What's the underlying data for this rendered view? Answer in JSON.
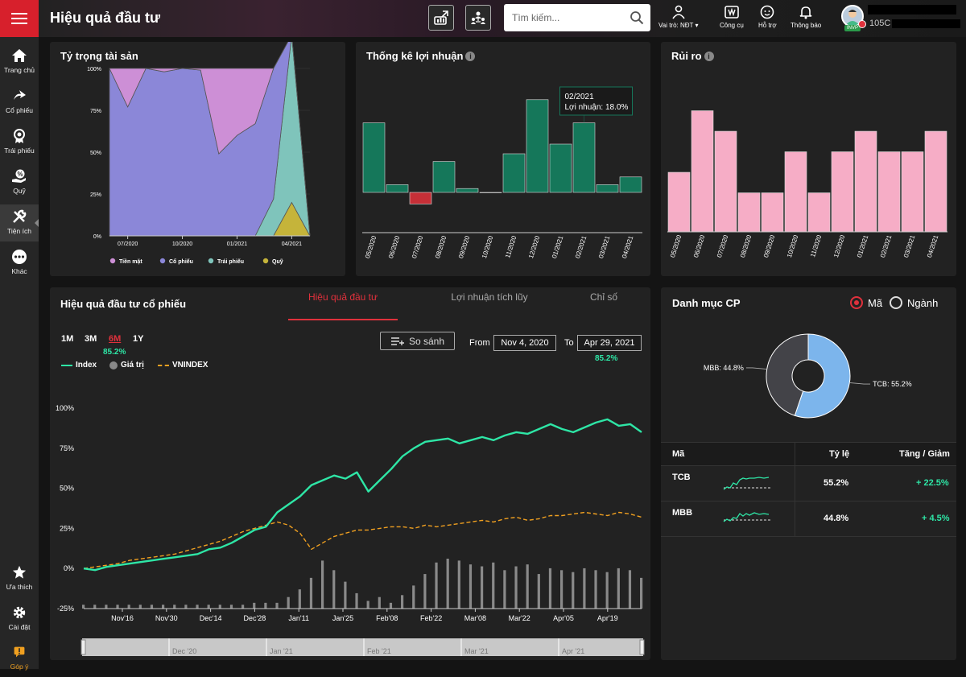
{
  "header": {
    "title": "Hiệu quả đầu tư",
    "search_placeholder": "Tìm kiếm...",
    "tools": [
      {
        "label": "Vai trò: NĐT",
        "icon": "user-icon"
      },
      {
        "label": "Công cụ",
        "icon": "toolbox-icon"
      },
      {
        "label": "Hỗ trợ",
        "icon": "support-icon"
      },
      {
        "label": "Thông báo",
        "icon": "bell-icon"
      }
    ],
    "account_code": "105C",
    "avatar_badge": "INVP"
  },
  "sidebar": {
    "items": [
      {
        "label": "Trang chủ",
        "icon": "home-icon"
      },
      {
        "label": "Cổ phiếu",
        "icon": "stock-icon"
      },
      {
        "label": "Trái phiếu",
        "icon": "bond-icon"
      },
      {
        "label": "Quỹ",
        "icon": "fund-icon"
      },
      {
        "label": "Tiện ích",
        "icon": "tools-icon"
      },
      {
        "label": "Khác",
        "icon": "more-icon"
      }
    ],
    "bottom": [
      {
        "label": "Ưa thích",
        "icon": "star-icon"
      },
      {
        "label": "Cài đặt",
        "icon": "gear-icon"
      },
      {
        "label": "Góp ý",
        "icon": "feedback-icon"
      }
    ]
  },
  "allocation": {
    "title": "Tỷ trọng tài sản",
    "chart_data": {
      "type": "area",
      "x": [
        "2020-06",
        "2020-07",
        "2020-08",
        "2020-09",
        "2020-10",
        "2020-11",
        "2020-12",
        "2021-01",
        "2021-02",
        "2021-03",
        "2021-04",
        "2021-05"
      ],
      "x_tick_labels": [
        "07/2020",
        "10/2020",
        "01/2021",
        "04/2021"
      ],
      "y_tick_labels": [
        "100%",
        "75%",
        "50%",
        "25%",
        "0%"
      ],
      "ylim": [
        0,
        100
      ],
      "series": [
        {
          "name": "Tiền mặt",
          "color": "#cd8fd6",
          "values": [
            0,
            23,
            0,
            2,
            0,
            1,
            51,
            40,
            33,
            0,
            0,
            0
          ]
        },
        {
          "name": "Cổ phiếu",
          "color": "#8b87d8",
          "values": [
            100,
            77,
            100,
            98,
            100,
            99,
            49,
            60,
            67,
            78,
            0,
            0
          ]
        },
        {
          "name": "Trái phiếu",
          "color": "#7fc4bb",
          "values": [
            0,
            0,
            0,
            0,
            0,
            0,
            0,
            0,
            0,
            22,
            100,
            0
          ]
        },
        {
          "name": "Quỹ",
          "color": "#c5b43a",
          "values": [
            0,
            0,
            0,
            0,
            0,
            0,
            0,
            0,
            0,
            0,
            20,
            0
          ]
        }
      ],
      "legend_position": "bottom"
    }
  },
  "profit": {
    "title": "Thống kê lợi nhuận",
    "tooltip": {
      "title": "02/2021",
      "text": "Lợi nhuận: 18.0%"
    },
    "chart_data": {
      "type": "bar",
      "categories": [
        "05/2020",
        "06/2020",
        "07/2020",
        "08/2020",
        "09/2020",
        "10/2020",
        "11/2020",
        "12/2020",
        "01/2021",
        "02/2021",
        "03/2021",
        "04/2021"
      ],
      "values": [
        18,
        2,
        -3,
        8,
        1,
        0,
        10,
        24,
        12.5,
        18,
        2,
        4
      ],
      "positive_color": "#15775a",
      "negative_color": "#c62f37"
    }
  },
  "risk": {
    "title": "Rủi ro",
    "chart_data": {
      "type": "bar",
      "categories": [
        "05/2020",
        "06/2020",
        "07/2020",
        "08/2020",
        "09/2020",
        "10/2020",
        "11/2020",
        "12/2020",
        "01/2021",
        "02/2021",
        "03/2021",
        "04/2021"
      ],
      "values": [
        29,
        59,
        49,
        19,
        19,
        39,
        19,
        39,
        49,
        39,
        39,
        49
      ],
      "color": "#f6adc6"
    }
  },
  "performance": {
    "title": "Hiệu quả đầu tư cổ phiếu",
    "tabs": [
      "Hiệu quả đầu tư",
      "Lợi nhuận tích lũy",
      "Chỉ số"
    ],
    "timeframes": [
      "1M",
      "3M",
      "6M",
      "1Y"
    ],
    "active_timeframe_value": "85.2%",
    "compare_label": "So sánh",
    "from_label": "From",
    "from_date": "Nov 4, 2020",
    "to_label": "To",
    "to_date": "Apr 29, 2021",
    "to_value": "85.2%",
    "legend": [
      {
        "name": "Index",
        "color": "#2ee6a6"
      },
      {
        "name": "Giá trị",
        "color": "#888888"
      },
      {
        "name": "VNINDEX",
        "color": "#f0a020"
      }
    ],
    "chart_data": {
      "type": "line",
      "y_tick_labels": [
        "100%",
        "75%",
        "50%",
        "25%",
        "0%",
        "-25%"
      ],
      "ylim": [
        -25,
        100
      ],
      "x_tick_labels": [
        "Nov'16",
        "Nov'30",
        "Dec'14",
        "Dec'28",
        "Jan'11",
        "Jan'25",
        "Feb'08",
        "Feb'22",
        "Mar'08",
        "Mar'22",
        "Apr'05",
        "Apr'19"
      ],
      "navigator_labels": [
        "Dec '20",
        "Jan '21",
        "Feb '21",
        "Mar '21",
        "Apr '21"
      ],
      "index_values": [
        0,
        -1,
        1,
        2,
        3,
        4,
        5,
        6,
        7,
        8,
        9,
        12,
        13,
        16,
        20,
        24,
        26,
        35,
        40,
        45,
        52,
        55,
        58,
        56,
        60,
        48,
        55,
        62,
        70,
        75,
        79,
        80,
        81,
        78,
        80,
        82,
        80,
        83,
        85,
        84,
        87,
        90,
        87,
        85,
        88,
        91,
        93,
        89,
        90,
        85
      ],
      "vnindex_values": [
        0,
        1,
        2,
        3,
        5,
        6,
        7,
        8,
        9,
        11,
        13,
        15,
        17,
        20,
        23,
        25,
        27,
        29,
        27,
        22,
        12,
        16,
        20,
        22,
        24,
        24,
        25,
        26,
        26,
        25,
        27,
        26,
        27,
        28,
        29,
        30,
        29,
        31,
        32,
        30,
        31,
        33,
        33,
        34,
        35,
        34,
        33,
        35,
        34,
        32
      ],
      "volume_values": [
        2,
        2,
        2,
        2,
        2,
        2,
        2,
        2,
        2,
        2,
        2,
        2,
        2,
        2,
        2,
        3,
        3,
        3,
        6,
        10,
        16,
        25,
        20,
        14,
        8,
        4,
        6,
        3,
        7,
        12,
        18,
        24,
        26,
        25,
        23,
        22,
        24,
        20,
        22,
        23,
        18,
        21,
        20,
        19,
        21,
        20,
        19,
        21,
        20,
        16
      ]
    }
  },
  "portfolio": {
    "title": "Danh mục CP",
    "radio": [
      {
        "label": "Mã",
        "selected": true
      },
      {
        "label": "Ngành",
        "selected": false
      }
    ],
    "chart_data": {
      "type": "pie",
      "categories": [
        "TCB",
        "MBB"
      ],
      "values": [
        55.2,
        44.8
      ],
      "labels": [
        "TCB: 55.2%",
        "MBB: 44.8%"
      ],
      "colors": [
        "#7cb5ec",
        "#434348"
      ]
    },
    "table": {
      "headers": [
        "Mã",
        "Tỷ lệ",
        "Tăng / Giảm"
      ],
      "rows": [
        {
          "code": "TCB",
          "ratio": "55.2%",
          "change": "+ 22.5%"
        },
        {
          "code": "MBB",
          "ratio": "44.8%",
          "change": "+ 4.5%"
        }
      ]
    }
  }
}
